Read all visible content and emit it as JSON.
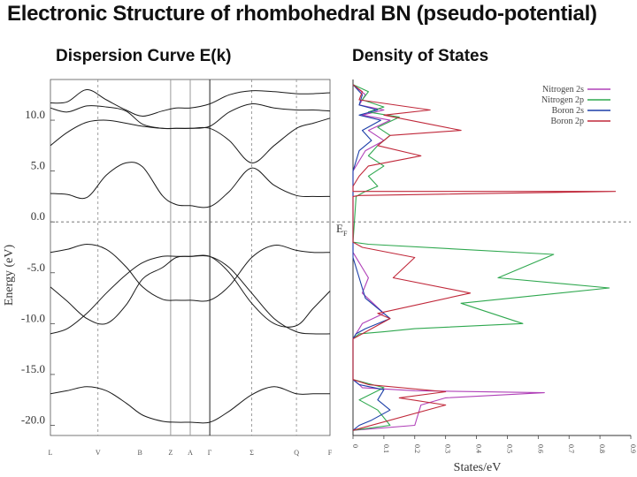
{
  "page": {
    "main_title": "Electronic Structure of rhombohedral BN (pseudo-potential)",
    "dispersion_title": "Dispersion Curve E(k)",
    "dos_title": "Density of States",
    "fermi_label": "E",
    "fermi_sub": "F"
  },
  "chart_data": [
    {
      "type": "line",
      "title": "Dispersion Curve E(k)",
      "ylabel": "Energy (eV)",
      "xlabel": "",
      "ylim": [
        -21,
        14
      ],
      "ytick_labels": [
        "10.0",
        "5.0",
        "0.0",
        "-5.0",
        "-10.0",
        "-15.0",
        "-20.0"
      ],
      "yticks": [
        10,
        5,
        0,
        -5,
        -10,
        -15,
        -20
      ],
      "kpoints": [
        "L",
        "V",
        "B",
        "Z",
        "A",
        "Γ",
        "Σ",
        "Q",
        "F"
      ],
      "kpos": [
        0,
        0.17,
        0.32,
        0.43,
        0.5,
        0.57,
        0.72,
        0.88,
        1.0
      ],
      "solid_lines_at": [
        "Γ"
      ],
      "gray_lines_at": [
        "Z",
        "A"
      ],
      "dashed_lines_at": [
        "V",
        "Σ",
        "Q"
      ],
      "fermi_level": 0,
      "series": [
        {
          "x": [
            0,
            0.06,
            0.13,
            0.2,
            0.27,
            0.33,
            0.4,
            0.45,
            0.5,
            0.57,
            0.64,
            0.72,
            0.8,
            0.88,
            0.94,
            1.0
          ],
          "y": [
            -16.9,
            -16.6,
            -16.2,
            -16.6,
            -17.8,
            -19.0,
            -19.6,
            -19.7,
            -19.7,
            -19.7,
            -18.6,
            -17.0,
            -16.2,
            -16.9,
            -16.9,
            -16.9
          ]
        },
        {
          "x": [
            0,
            0.06,
            0.13,
            0.2,
            0.27,
            0.33,
            0.4,
            0.45,
            0.5,
            0.57,
            0.64,
            0.72,
            0.8,
            0.88,
            0.94,
            1.0
          ],
          "y": [
            -11.0,
            -10.5,
            -9.0,
            -7.0,
            -5.2,
            -4.0,
            -3.4,
            -3.4,
            -3.4,
            -3.4,
            -4.5,
            -7.0,
            -9.5,
            -10.8,
            -11.0,
            -11.0
          ]
        },
        {
          "x": [
            0,
            0.06,
            0.13,
            0.2,
            0.27,
            0.33,
            0.4,
            0.45,
            0.5,
            0.57,
            0.64,
            0.72,
            0.8,
            0.88,
            0.94,
            1.0
          ],
          "y": [
            -6.4,
            -7.8,
            -9.5,
            -10.0,
            -8.2,
            -5.6,
            -4.5,
            -3.5,
            -3.4,
            -3.4,
            -5.0,
            -8.0,
            -10.0,
            -10.2,
            -8.5,
            -6.8
          ]
        },
        {
          "x": [
            0,
            0.06,
            0.13,
            0.2,
            0.27,
            0.33,
            0.4,
            0.45,
            0.5,
            0.57,
            0.64,
            0.72,
            0.8,
            0.88,
            0.94,
            1.0
          ],
          "y": [
            -3.0,
            -2.7,
            -2.2,
            -2.7,
            -4.4,
            -6.4,
            -7.6,
            -7.7,
            -7.7,
            -7.7,
            -6.3,
            -3.5,
            -2.3,
            -2.8,
            -3.0,
            -3.0
          ]
        },
        {
          "x": [
            0,
            0.06,
            0.13,
            0.2,
            0.27,
            0.33,
            0.4,
            0.45,
            0.5,
            0.57,
            0.64,
            0.72,
            0.8,
            0.88,
            0.94,
            1.0
          ],
          "y": [
            2.8,
            2.7,
            2.4,
            4.6,
            5.8,
            5.4,
            2.6,
            1.7,
            1.6,
            1.5,
            3.0,
            5.3,
            3.6,
            2.6,
            2.5,
            2.5
          ]
        },
        {
          "x": [
            0,
            0.06,
            0.13,
            0.2,
            0.27,
            0.33,
            0.4,
            0.45,
            0.5,
            0.57,
            0.64,
            0.72,
            0.8,
            0.88,
            0.94,
            1.0
          ],
          "y": [
            7.5,
            8.8,
            9.8,
            10.0,
            9.7,
            9.4,
            9.2,
            9.2,
            9.2,
            9.2,
            8.0,
            5.8,
            7.5,
            9.2,
            9.7,
            10.2
          ]
        },
        {
          "x": [
            0,
            0.06,
            0.13,
            0.2,
            0.27,
            0.33,
            0.4,
            0.45,
            0.5,
            0.57,
            0.64,
            0.72,
            0.8,
            0.88,
            0.94,
            1.0
          ],
          "y": [
            11.2,
            10.8,
            11.4,
            11.3,
            10.9,
            9.6,
            9.2,
            9.2,
            9.2,
            9.4,
            10.8,
            11.6,
            11.2,
            11.0,
            11.0,
            10.9
          ]
        },
        {
          "x": [
            0,
            0.06,
            0.13,
            0.2,
            0.27,
            0.33,
            0.4,
            0.45,
            0.5,
            0.57,
            0.64,
            0.72,
            0.8,
            0.88,
            0.94,
            1.0
          ],
          "y": [
            11.7,
            11.8,
            13.0,
            12.0,
            11.0,
            10.4,
            10.9,
            11.2,
            11.2,
            11.6,
            12.5,
            12.9,
            12.8,
            12.6,
            12.6,
            12.7
          ]
        }
      ]
    },
    {
      "type": "line",
      "title": "Density of States",
      "xlabel": "States/eV",
      "ylabel": "",
      "xlim": [
        0,
        0.9
      ],
      "ylim": [
        -21,
        14
      ],
      "xtick_labels": [
        "0",
        "0.1",
        "0.2",
        "0.3",
        "0.4",
        "0.5",
        "0.6",
        "0.7",
        "0.8",
        "0.9"
      ],
      "xticks": [
        0,
        0.1,
        0.2,
        0.3,
        0.4,
        0.5,
        0.6,
        0.7,
        0.8,
        0.9
      ],
      "legend": "top-right",
      "series": [
        {
          "name": "Nitrogen 2s",
          "color": "#b040b8",
          "x": [
            0,
            0.04,
            0.02,
            0.1,
            0.03,
            0.12,
            0.05,
            0.1,
            0.04,
            0.02,
            0,
            0,
            0.05,
            0.03,
            0.1,
            0.03,
            0.01,
            0,
            0,
            0.02,
            0.03,
            0.2,
            0.62,
            0.3,
            0.22,
            0.2,
            0
          ],
          "y": [
            13.5,
            12.5,
            11.5,
            11.0,
            10.5,
            10.0,
            9.0,
            8.0,
            7.0,
            6.0,
            5.0,
            -3.0,
            -5.5,
            -7.0,
            -9.0,
            -10.0,
            -11.0,
            -11.5,
            -15.5,
            -16.0,
            -16.3,
            -16.6,
            -16.8,
            -17.3,
            -18.0,
            -20.0,
            -20.5
          ]
        },
        {
          "name": "Nitrogen 2p",
          "color": "#2fa84f",
          "x": [
            0,
            0.05,
            0.03,
            0.1,
            0.05,
            0.15,
            0.08,
            0.12,
            0.08,
            0.05,
            0.1,
            0.05,
            0.08,
            0.04,
            0.01,
            0,
            0.05,
            0.65,
            0.47,
            0.83,
            0.35,
            0.55,
            0.2,
            0.1,
            0.02,
            0,
            0,
            0.1,
            0.02,
            0.08,
            0.12,
            0
          ],
          "y": [
            13.5,
            12.8,
            12.0,
            11.3,
            10.8,
            10.3,
            9.3,
            8.5,
            7.5,
            6.5,
            5.5,
            4.5,
            3.5,
            3.0,
            2.5,
            -2.0,
            -2.2,
            -3.2,
            -5.5,
            -6.5,
            -8.0,
            -10.0,
            -10.5,
            -10.8,
            -11.0,
            -11.5,
            -15.5,
            -16.3,
            -17.5,
            -18.5,
            -20.0,
            -20.5
          ]
        },
        {
          "name": "Boron 2s",
          "color": "#1c3fa8",
          "x": [
            0,
            0.03,
            0.02,
            0.08,
            0.02,
            0.09,
            0.03,
            0.06,
            0.02,
            0.01,
            0,
            0,
            0.02,
            0.04,
            0.12,
            0.04,
            0.01,
            0,
            0,
            0.02,
            0.1,
            0.08,
            0.12,
            0.06,
            0.02,
            0
          ],
          "y": [
            13.5,
            12.5,
            11.5,
            11.0,
            10.5,
            10.0,
            9.0,
            8.0,
            7.0,
            6.0,
            5.0,
            -3.5,
            -5.5,
            -7.5,
            -9.5,
            -10.5,
            -11.0,
            -11.5,
            -15.5,
            -16.0,
            -16.5,
            -17.5,
            -18.5,
            -19.5,
            -20.0,
            -20.5
          ]
        },
        {
          "name": "Boron 2p",
          "color": "#c0283a",
          "x": [
            0,
            0.03,
            0.02,
            0.25,
            0.1,
            0.35,
            0.12,
            0.08,
            0.22,
            0.05,
            0.02,
            0,
            0,
            0.85,
            0.02,
            0,
            0,
            0.03,
            0.2,
            0.13,
            0.38,
            0.08,
            0.12,
            0.06,
            0.03,
            0,
            0,
            0.05,
            0.3,
            0.15,
            0.3,
            0
          ],
          "y": [
            13.5,
            12.8,
            12.0,
            11.0,
            10.5,
            9.0,
            8.5,
            7.5,
            6.5,
            5.5,
            4.5,
            3.5,
            3.0,
            3.0,
            2.6,
            2.5,
            -2.0,
            -2.5,
            -3.5,
            -5.5,
            -7.0,
            -9.0,
            -9.5,
            -10.5,
            -11.0,
            -11.5,
            -15.5,
            -16.0,
            -16.7,
            -17.3,
            -18.0,
            -20.5
          ]
        }
      ]
    }
  ]
}
